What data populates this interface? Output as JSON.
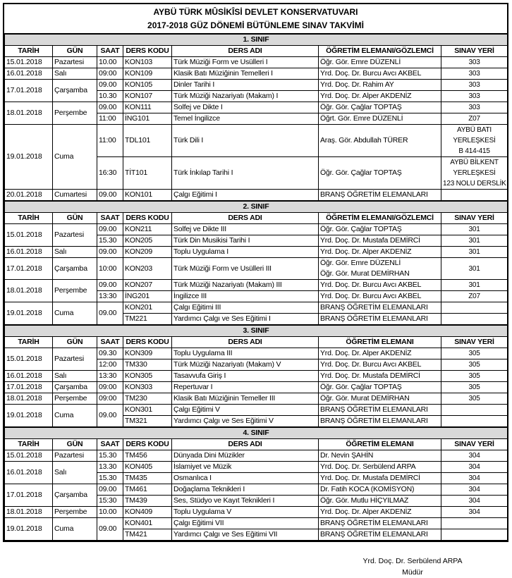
{
  "title": {
    "line1": "AYBÜ TÜRK MÛSİKÎSİ DEVLET KONSERVATUVARI",
    "line2": "2017-2018 GÜZ DÖNEMİ BÜTÜNLEME SINAV TAKVİMİ"
  },
  "sections": [
    {
      "title": "1. SINIF",
      "headers": [
        "TARİH",
        "GÜN",
        "SAAT",
        "DERS KODU",
        "DERS ADI",
        "ÖĞRETİM ELEMANI/GÖZLEMCİ",
        "SINAV YERİ"
      ],
      "groups": [
        {
          "date": "15.01.2018",
          "day": "Pazartesi",
          "rows": [
            {
              "time": "10.00",
              "code": "KON103",
              "course": "Türk Müziği Form ve Usülleri I",
              "instructor": [
                "Öğr. Gör. Emre DÜZENLİ"
              ],
              "room": [
                "303"
              ]
            }
          ]
        },
        {
          "date": "16.01.2018",
          "day": "Salı",
          "rows": [
            {
              "time": "09:00",
              "code": "KON109",
              "course": "Klasik Batı Müziğinin Temelleri I",
              "instructor": [
                "Yrd. Doç. Dr. Burcu Avcı AKBEL"
              ],
              "room": [
                "303"
              ]
            }
          ]
        },
        {
          "date": "17.01.2018",
          "day": "Çarşamba",
          "rows": [
            {
              "time": "09.00",
              "code": "KON105",
              "course": "Dinler Tarihi I",
              "instructor": [
                "Yrd. Doç. Dr. Rahim AY"
              ],
              "room": [
                "303"
              ]
            },
            {
              "time": "10.30",
              "code": "KON107",
              "course": "Türk Müziği Nazariyatı (Makam) I",
              "instructor": [
                "Yrd. Doç. Dr. Alper AKDENİZ"
              ],
              "room": [
                "303"
              ]
            }
          ]
        },
        {
          "date": "18.01.2018",
          "day": "Perşembe",
          "rows": [
            {
              "time": "09.00",
              "code": "KON111",
              "course": "Solfej ve Dikte I",
              "instructor": [
                "Öğr. Gör. Çağlar TOPTAŞ"
              ],
              "room": [
                "303"
              ]
            },
            {
              "time": "11:00",
              "code": "İNG101",
              "course": "Temel İngilizce",
              "instructor": [
                "Öğrt. Gör. Emre DÜZENLİ"
              ],
              "room": [
                "Z07"
              ]
            }
          ]
        },
        {
          "date": "19.01.2018",
          "day": "Cuma",
          "rows": [
            {
              "time": "11:00",
              "code": "TDL101",
              "course": "Türk Dili I",
              "instructor": [
                "Araş. Gör. Abdullah TÜRER"
              ],
              "room": [
                "AYBÜ BATI",
                "YERLEŞKESİ",
                "B 414-415"
              ]
            },
            {
              "time": "16:30",
              "code": "TİT101",
              "course": "Türk İnkılap Tarihi I",
              "instructor": [
                "Öğr. Gör. Çağlar TOPTAŞ"
              ],
              "room": [
                "AYBÜ BİLKENT",
                "YERLEŞKESİ",
                "123 NOLU DERSLİK"
              ]
            }
          ]
        },
        {
          "date": "20.01.2018",
          "day": "Cumartesi",
          "rows": [
            {
              "time": "09.00",
              "code": "KON101",
              "course": "Çalgı Eğitimi I",
              "instructor": [
                "BRANŞ ÖĞRETİM ELEMANLARI"
              ],
              "room": []
            }
          ]
        }
      ]
    },
    {
      "title": "2. SINIF",
      "headers": [
        "TARİH",
        "GÜN",
        "SAAT",
        "DERS KODU",
        "DERS ADI",
        "ÖĞRETİM ELEMANI/GÖZLEMCİ",
        "SINAV YERİ"
      ],
      "groups": [
        {
          "date": "15.01.2018",
          "day": "Pazartesi",
          "rows": [
            {
              "time": "09.00",
              "code": "KON211",
              "course": "Solfej ve Dikte III",
              "instructor": [
                "Öğr. Gör. Çağlar TOPTAŞ"
              ],
              "room": [
                "301"
              ]
            },
            {
              "time": "15.30",
              "code": "KON205",
              "course": "Türk Din Musikisi Tarihi I",
              "instructor": [
                "Yrd. Doç. Dr. Mustafa DEMİRCİ"
              ],
              "room": [
                "301"
              ]
            }
          ]
        },
        {
          "date": "16.01.2018",
          "day": "Salı",
          "rows": [
            {
              "time": "09.00",
              "code": "KON209",
              "course": "Toplu Uygulama I",
              "instructor": [
                "Yrd. Doç. Dr. Alper AKDENİZ"
              ],
              "room": [
                "301"
              ]
            }
          ]
        },
        {
          "date": "17.01.2018",
          "day": "Çarşamba",
          "rows": [
            {
              "time": "10:00",
              "code": "KON203",
              "course": "Türk Müziği Form ve Usülleri III",
              "instructor": [
                "Öğr. Gör. Emre DÜZENLİ",
                "Öğr. Gör. Murat DEMİRHAN"
              ],
              "room": [
                "301"
              ]
            }
          ]
        },
        {
          "date": "18.01.2018",
          "day": "Perşembe",
          "rows": [
            {
              "time": "09.00",
              "code": "KON207",
              "course": "Türk Müziği Nazariyatı (Makam) III",
              "instructor": [
                "Yrd. Doç. Dr. Burcu Avcı AKBEL"
              ],
              "room": [
                "301"
              ]
            },
            {
              "time": "13:30",
              "code": "İNG201",
              "course": "İngilizce III",
              "instructor": [
                "Yrd. Doç. Dr. Burcu Avcı AKBEL"
              ],
              "room": [
                "Z07"
              ]
            }
          ]
        },
        {
          "date": "19.01.2018",
          "day": "Cuma",
          "time": "09.00",
          "rows": [
            {
              "code": "KON201",
              "course": "Çalgı Eğitimi III",
              "instructor": [
                "BRANŞ ÖĞRETİM ELEMANLARI"
              ],
              "room": []
            },
            {
              "code": "TM221",
              "course": "Yardımcı Çalgı ve Ses Eğitimi I",
              "instructor": [
                "BRANŞ ÖĞRETİM ELEMANLARI"
              ],
              "room": []
            }
          ]
        }
      ]
    },
    {
      "title": "3. SINIF",
      "headers": [
        "TARİH",
        "GÜN",
        "SAAT",
        "DERS KODU",
        "DERS ADI",
        "ÖĞRETİM ELEMANI",
        "SINAV YERİ"
      ],
      "groups": [
        {
          "date": "15.01.2018",
          "day": "Pazartesi",
          "rows": [
            {
              "time": "09.30",
              "code": "KON309",
              "course": "Toplu Uygulama III",
              "instructor": [
                "Yrd. Doç. Dr. Alper AKDENİZ"
              ],
              "room": [
                "305"
              ]
            },
            {
              "time": "12:00",
              "code": "TM330",
              "course": "Türk Müziği Nazariyatı (Makam) V",
              "instructor": [
                "Yrd. Doç. Dr. Burcu Avcı AKBEL"
              ],
              "room": [
                "305"
              ]
            }
          ]
        },
        {
          "date": "16.01.2018",
          "day": "Salı",
          "rows": [
            {
              "time": "13:30",
              "code": "KON305",
              "course": "Tasavvufa Giriş I",
              "instructor": [
                "Yrd. Doç. Dr. Mustafa DEMİRCİ"
              ],
              "room": [
                "305"
              ]
            }
          ]
        },
        {
          "date": "17.01.2018",
          "day": "Çarşamba",
          "rows": [
            {
              "time": "09:00",
              "code": "KON303",
              "course": "Repertuvar I",
              "instructor": [
                "Öğr. Gör. Çağlar TOPTAŞ"
              ],
              "room": [
                "305"
              ]
            }
          ]
        },
        {
          "date": "18.01.2018",
          "day": "Perşembe",
          "rows": [
            {
              "time": "09:00",
              "code": "TM230",
              "course": "Klasik Batı Müziğinin Temeller III",
              "instructor": [
                "Öğr. Gör. Murat DEMİRHAN"
              ],
              "room": [
                "305"
              ]
            }
          ]
        },
        {
          "date": "19.01.2018",
          "day": "Cuma",
          "time": "09.00",
          "rows": [
            {
              "code": "KON301",
              "course": "Çalgı Eğitimi V",
              "instructor": [
                "BRANŞ ÖĞRETİM ELEMANLARI"
              ],
              "room": []
            },
            {
              "code": "TM321",
              "course": "Yardımcı Çalgı ve Ses Eğitimi V",
              "instructor": [
                "BRANŞ ÖĞRETİM ELEMANLARI"
              ],
              "room": []
            }
          ]
        }
      ]
    },
    {
      "title": "4. SINIF",
      "headers": [
        "TARİH",
        "GÜN",
        "SAAT",
        "DERS KODU",
        "DERS ADI",
        "ÖĞRETİM ELEMANI",
        "SINAV YERİ"
      ],
      "groups": [
        {
          "date": "15.01.2018",
          "day": "Pazartesi",
          "rows": [
            {
              "time": "15.30",
              "code": "TM456",
              "course": "Dünyada Dini Müzikler",
              "instructor": [
                "Dr. Nevin ŞAHİN"
              ],
              "room": [
                "304"
              ]
            }
          ]
        },
        {
          "date": "16.01.2018",
          "day": "Salı",
          "rows": [
            {
              "time": "13.30",
              "code": "KON405",
              "course": "İslamiyet ve Müzik",
              "instructor": [
                "Yrd. Doç. Dr. Serbülend ARPA"
              ],
              "room": [
                "304"
              ]
            },
            {
              "time": "15.30",
              "code": "TM435",
              "course": "Osmanlıca I",
              "instructor": [
                "Yrd. Doç. Dr. Mustafa DEMİRCİ"
              ],
              "room": [
                "304"
              ]
            }
          ]
        },
        {
          "date": "17.01.2018",
          "day": "Çarşamba",
          "rows": [
            {
              "time": "09.00",
              "code": "TM461",
              "course": "Doğaçlama Teknikleri I",
              "instructor": [
                "Dr. Fatih KOCA (KOMİSYON)"
              ],
              "room": [
                "304"
              ]
            },
            {
              "time": "15:30",
              "code": "TM439",
              "course": "Ses, Stüdyo ve Kayıt Teknikleri I",
              "instructor": [
                "Öğr. Gör. Mutlu HİÇYILMAZ"
              ],
              "room": [
                "304"
              ]
            }
          ]
        },
        {
          "date": "18.01.2018",
          "day": "Perşembe",
          "rows": [
            {
              "time": "10.00",
              "code": "KON409",
              "course": "Toplu Uygulama V",
              "instructor": [
                "Yrd. Doç. Dr. Alper AKDENİZ"
              ],
              "room": [
                "304"
              ]
            }
          ]
        },
        {
          "date": "19.01.2018",
          "day": "Cuma",
          "time": "09.00",
          "rows": [
            {
              "code": "KON401",
              "course": "Çalgı Eğitimi VII",
              "instructor": [
                "BRANŞ ÖĞRETİM ELEMANLARI"
              ],
              "room": []
            },
            {
              "code": "TM421",
              "course": "Yardımcı Çalgı ve Ses Eğitimi VII",
              "instructor": [
                "BRANŞ ÖĞRETİM ELEMANLARI"
              ],
              "room": []
            }
          ]
        }
      ]
    }
  ],
  "signature": {
    "name": "Yrd. Doç. Dr. Serbülend ARPA",
    "role": "Müdür"
  }
}
